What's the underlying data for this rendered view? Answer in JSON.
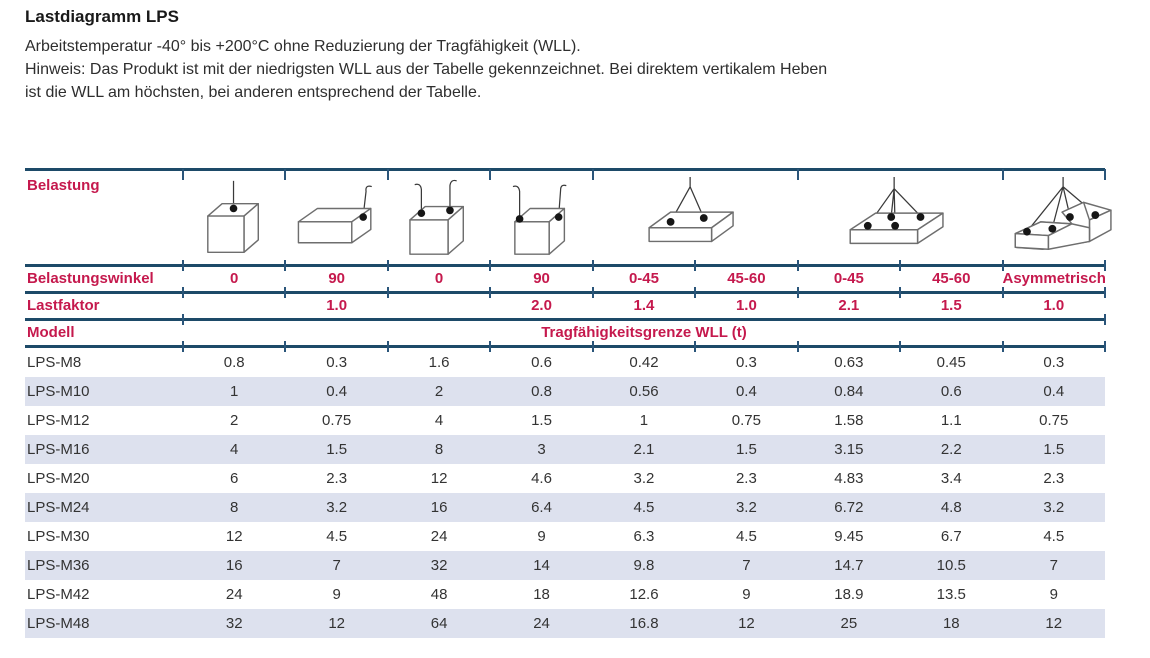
{
  "page": {
    "title": "Lastdiagramm LPS",
    "intro": "Arbeitstemperatur -40° bis +200°C ohne Reduzierung der Tragfähigkeit (WLL).",
    "hinweis_line1": "Hinweis: Das Produkt ist mit der niedrigsten WLL aus der Tabelle gekennzeichnet. Bei direktem vertikalem Heben",
    "hinweis_line2": "ist die WLL am höchsten, bei anderen entsprechend der Tabelle."
  },
  "colors": {
    "accent_red": "#c5194d",
    "rule_navy": "#1d4a68",
    "row_stripe": "#dde1ee"
  },
  "table": {
    "belastung_label": "Belastung",
    "load_icons": [
      {
        "name": "single-leg-vertical-cube-icon",
        "colspan": 1
      },
      {
        "name": "single-leg-side-90-box-icon",
        "colspan": 1
      },
      {
        "name": "two-leg-vertical-cube-icon",
        "colspan": 1
      },
      {
        "name": "two-leg-90-cube-icon",
        "colspan": 1
      },
      {
        "name": "two-leg-angled-sling-icon",
        "colspan": 2
      },
      {
        "name": "four-leg-sling-icon",
        "colspan": 2
      },
      {
        "name": "asymmetric-four-leg-sling-icon",
        "colspan": 1
      }
    ],
    "winkel_label": "Belastungswinkel",
    "winkel_values": [
      "0",
      "90",
      "0",
      "90",
      "0-45",
      "45-60",
      "0-45",
      "45-60",
      "Asymmetrisch"
    ],
    "faktor_label": "Lastfaktor",
    "faktor_values": [
      "",
      "1.0",
      "",
      "2.0",
      "1.4",
      "1.0",
      "2.1",
      "1.5",
      "1.0"
    ],
    "modell_label": "Modell",
    "wll_header": "Tragfähigkeitsgrenze WLL (t)",
    "rows": [
      {
        "model": "LPS-M8",
        "values": [
          "0.8",
          "0.3",
          "1.6",
          "0.6",
          "0.42",
          "0.3",
          "0.63",
          "0.45",
          "0.3"
        ]
      },
      {
        "model": "LPS-M10",
        "values": [
          "1",
          "0.4",
          "2",
          "0.8",
          "0.56",
          "0.4",
          "0.84",
          "0.6",
          "0.4"
        ]
      },
      {
        "model": "LPS-M12",
        "values": [
          "2",
          "0.75",
          "4",
          "1.5",
          "1",
          "0.75",
          "1.58",
          "1.1",
          "0.75"
        ]
      },
      {
        "model": "LPS-M16",
        "values": [
          "4",
          "1.5",
          "8",
          "3",
          "2.1",
          "1.5",
          "3.15",
          "2.2",
          "1.5"
        ]
      },
      {
        "model": "LPS-M20",
        "values": [
          "6",
          "2.3",
          "12",
          "4.6",
          "3.2",
          "2.3",
          "4.83",
          "3.4",
          "2.3"
        ]
      },
      {
        "model": "LPS-M24",
        "values": [
          "8",
          "3.2",
          "16",
          "6.4",
          "4.5",
          "3.2",
          "6.72",
          "4.8",
          "3.2"
        ]
      },
      {
        "model": "LPS-M30",
        "values": [
          "12",
          "4.5",
          "24",
          "9",
          "6.3",
          "4.5",
          "9.45",
          "6.7",
          "4.5"
        ]
      },
      {
        "model": "LPS-M36",
        "values": [
          "16",
          "7",
          "32",
          "14",
          "9.8",
          "7",
          "14.7",
          "10.5",
          "7"
        ]
      },
      {
        "model": "LPS-M42",
        "values": [
          "24",
          "9",
          "48",
          "18",
          "12.6",
          "9",
          "18.9",
          "13.5",
          "9"
        ]
      },
      {
        "model": "LPS-M48",
        "values": [
          "32",
          "12",
          "64",
          "24",
          "16.8",
          "12",
          "25",
          "18",
          "12"
        ]
      }
    ]
  }
}
